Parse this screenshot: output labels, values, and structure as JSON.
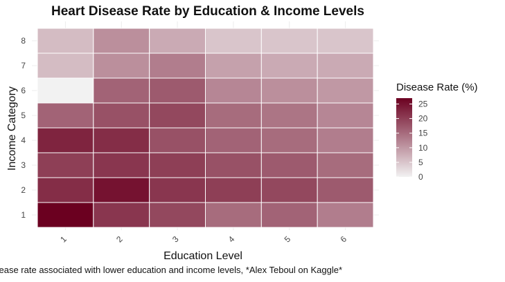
{
  "chart_data": {
    "type": "heatmap",
    "title": "Heart Disease Rate by Education & Income Levels",
    "xlabel": "Education Level",
    "ylabel": "Income Category",
    "x_categories": [
      "1",
      "2",
      "3",
      "4",
      "5",
      "6"
    ],
    "y_categories": [
      "1",
      "2",
      "3",
      "4",
      "5",
      "6",
      "7",
      "8"
    ],
    "caption": "sease rate associated with lower education and income levels, *Alex Teboul on Kaggle*",
    "legend": {
      "title": "Disease Rate (%)",
      "ticks": [
        0,
        5,
        10,
        15,
        20,
        25
      ],
      "range": [
        0,
        27
      ],
      "low_color": "#f2f2f2",
      "high_color": "#6b0020",
      "placement": "right"
    },
    "grid": true,
    "values": [
      [
        27,
        21,
        19,
        15,
        16,
        13
      ],
      [
        22,
        25,
        21,
        20,
        19,
        17
      ],
      [
        20,
        21,
        20,
        18,
        17,
        15
      ],
      [
        23,
        22,
        18,
        16,
        15,
        13
      ],
      [
        16,
        18,
        19,
        15,
        14,
        12
      ],
      [
        0,
        16,
        17,
        12,
        11,
        10
      ],
      [
        6,
        11,
        13,
        9,
        8,
        8
      ],
      [
        6,
        11,
        8,
        5,
        5,
        5
      ]
    ]
  }
}
